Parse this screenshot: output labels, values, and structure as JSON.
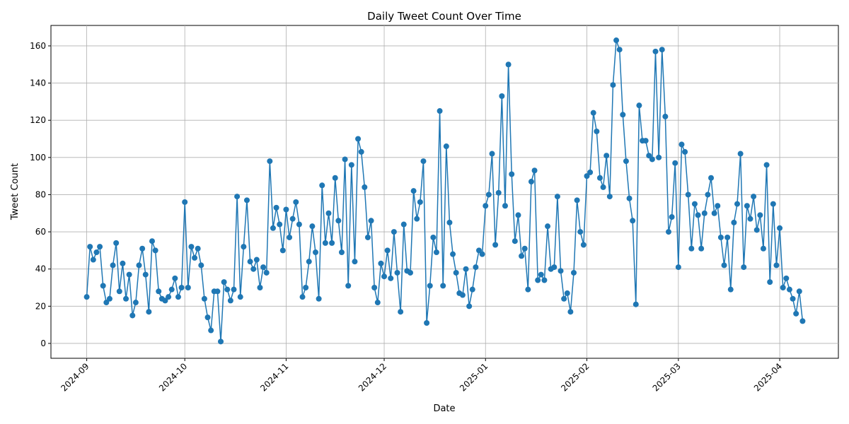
{
  "chart_data": {
    "type": "line",
    "title": "Daily Tweet Count Over Time",
    "x_label": "Date",
    "y_label": "Tweet Count",
    "color": "#1f77b4",
    "grid": true,
    "categories": [
      "2024-09",
      null,
      null,
      null,
      null,
      null,
      null,
      null,
      null,
      null,
      null,
      null,
      null,
      null,
      null,
      null,
      null,
      null,
      null,
      null,
      null,
      null,
      null,
      null,
      null,
      null,
      null,
      null,
      null,
      null,
      "2024-10",
      null,
      null,
      null,
      null,
      null,
      null,
      null,
      null,
      null,
      null,
      null,
      null,
      null,
      null,
      null,
      null,
      null,
      null,
      null,
      null,
      null,
      null,
      null,
      null,
      null,
      null,
      null,
      null,
      null,
      null,
      "2024-11",
      null,
      null,
      null,
      null,
      null,
      null,
      null,
      null,
      null,
      null,
      null,
      null,
      null,
      null,
      null,
      null,
      null,
      null,
      null,
      null,
      null,
      null,
      null,
      null,
      null,
      null,
      null,
      null,
      null,
      "2024-12",
      null,
      null,
      null,
      null,
      null,
      null,
      null,
      null,
      null,
      null,
      null,
      null,
      null,
      null,
      null,
      null,
      null,
      null,
      null,
      null,
      null,
      null,
      null,
      null,
      null,
      null,
      null,
      null,
      null,
      null,
      "2025-01",
      null,
      null,
      null,
      null,
      null,
      null,
      null,
      null,
      null,
      null,
      null,
      null,
      null,
      null,
      null,
      null,
      null,
      null,
      null,
      null,
      null,
      null,
      null,
      null,
      null,
      null,
      null,
      null,
      null,
      null,
      "2025-02",
      null,
      null,
      null,
      null,
      null,
      null,
      null,
      null,
      null,
      null,
      null,
      null,
      null,
      null,
      null,
      null,
      null,
      null,
      null,
      null,
      null,
      null,
      null,
      null,
      null,
      null,
      null,
      "2025-03",
      null,
      null,
      null,
      null,
      null,
      null,
      null,
      null,
      null,
      null,
      null,
      null,
      null,
      null,
      null,
      null,
      null,
      null,
      null,
      null,
      null,
      null,
      null,
      null,
      null,
      null,
      null,
      null,
      null,
      null,
      "2025-04",
      null,
      null,
      null,
      null,
      null,
      null,
      null
    ],
    "values": [
      25,
      52,
      45,
      49,
      52,
      31,
      22,
      24,
      42,
      54,
      28,
      43,
      24,
      37,
      15,
      22,
      42,
      51,
      37,
      17,
      55,
      50,
      28,
      24,
      23,
      25,
      29,
      35,
      25,
      30,
      76,
      30,
      52,
      46,
      51,
      42,
      24,
      14,
      7,
      28,
      28,
      1,
      33,
      29,
      23,
      29,
      79,
      25,
      52,
      77,
      44,
      40,
      45,
      30,
      41,
      38,
      98,
      62,
      73,
      64,
      50,
      72,
      57,
      67,
      76,
      64,
      25,
      30,
      44,
      63,
      49,
      24,
      85,
      54,
      70,
      54,
      89,
      66,
      49,
      99,
      31,
      96,
      44,
      110,
      103,
      84,
      57,
      66,
      30,
      22,
      43,
      36,
      50,
      35,
      60,
      38,
      17,
      64,
      39,
      38,
      82,
      67,
      76,
      98,
      11,
      31,
      57,
      49,
      125,
      31,
      106,
      65,
      48,
      38,
      27,
      26,
      40,
      20,
      29,
      41,
      50,
      48,
      74,
      80,
      102,
      53,
      81,
      133,
      74,
      150,
      91,
      55,
      69,
      47,
      51,
      29,
      87,
      93,
      34,
      37,
      34,
      63,
      40,
      41,
      79,
      39,
      24,
      27,
      17,
      38,
      77,
      60,
      53,
      90,
      92,
      124,
      114,
      89,
      84,
      101,
      79,
      139,
      163,
      158,
      123,
      98,
      78,
      66,
      21,
      128,
      109,
      109,
      101,
      99,
      157,
      100,
      158,
      122,
      60,
      68,
      97,
      41,
      107,
      103,
      80,
      51,
      75,
      69,
      51,
      70,
      80,
      89,
      70,
      74,
      57,
      42,
      57,
      29,
      65,
      75,
      102,
      41,
      74,
      67,
      79,
      61,
      69,
      51,
      96,
      33,
      75,
      42,
      62,
      30,
      35,
      29,
      24,
      16,
      28,
      12
    ],
    "ylim": [
      -8,
      171
    ],
    "yticks": [
      0,
      20,
      40,
      60,
      80,
      100,
      120,
      140,
      160
    ]
  }
}
